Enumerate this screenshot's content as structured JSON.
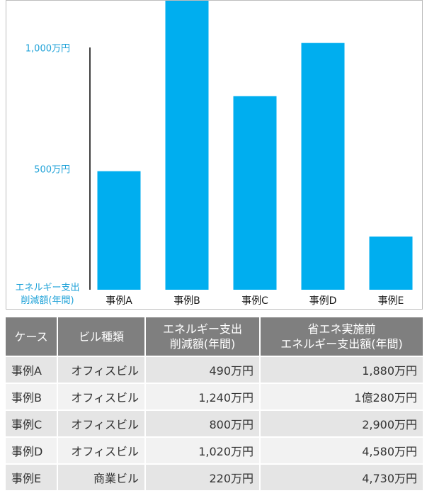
{
  "chart_data": {
    "type": "bar",
    "categories": [
      "事例A",
      "事例B",
      "事例C",
      "事例D",
      "事例E"
    ],
    "values": [
      490,
      1240,
      800,
      1020,
      220
    ],
    "unit": "万円",
    "ylabel_lines": [
      "エネルギー支出",
      "削減額(年間)"
    ],
    "y_ticks": [
      {
        "value": 500,
        "label": "500万円"
      },
      {
        "value": 1000,
        "label": "1,000万円"
      }
    ],
    "ylim": [
      0,
      1300
    ],
    "grid": false,
    "bar_color": "#00aeef",
    "axis_label_color": "#1fa2d8"
  },
  "table": {
    "headers": [
      {
        "lines": [
          "ケース"
        ]
      },
      {
        "lines": [
          "ビル種類"
        ]
      },
      {
        "lines": [
          "エネルギー支出",
          "削減額(年間)"
        ]
      },
      {
        "lines": [
          "省エネ実施前",
          "エネルギー支出額(年間)"
        ]
      }
    ],
    "rows": [
      [
        "事例A",
        "オフィスビル",
        "490万円",
        "1,880万円"
      ],
      [
        "事例B",
        "オフィスビル",
        "1,240万円",
        "1億280万円"
      ],
      [
        "事例C",
        "オフィスビル",
        "800万円",
        "2,900万円"
      ],
      [
        "事例D",
        "オフィスビル",
        "1,020万円",
        "4,580万円"
      ],
      [
        "事例E",
        "商業ビル",
        "220万円",
        "4,730万円"
      ]
    ],
    "header_bg": "#7f7f7f",
    "row_bg_odd": "#e5e5e5",
    "row_bg_even": "#f2f2f2"
  }
}
